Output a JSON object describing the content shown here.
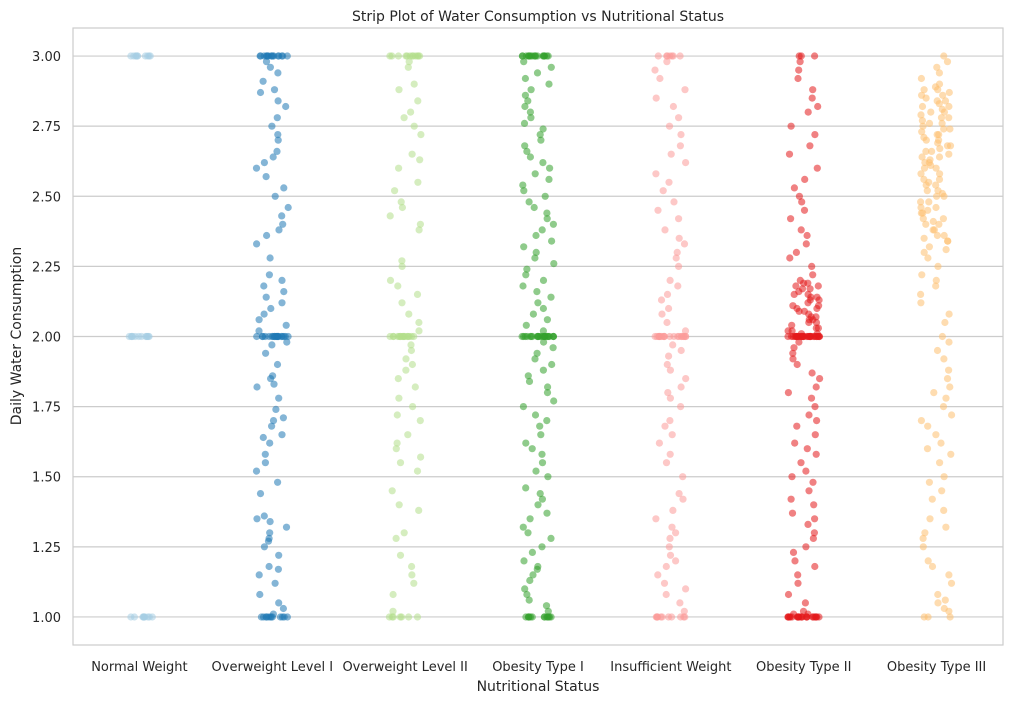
{
  "chart_data": {
    "type": "scatter",
    "subtype": "strip",
    "title": "Strip Plot of Water Consumption vs Nutritional Status",
    "xlabel": "Nutritional Status",
    "ylabel": "Daily Water Consumption",
    "ylim": [
      0.9,
      3.1
    ],
    "yticks": [
      1.0,
      1.25,
      1.5,
      1.75,
      2.0,
      2.25,
      2.5,
      2.75,
      3.0
    ],
    "ytick_labels": [
      "1.00",
      "1.25",
      "1.50",
      "1.75",
      "2.00",
      "2.25",
      "2.50",
      "2.75",
      "3.00"
    ],
    "grid": "horizontal",
    "legend": "none",
    "marker_alpha": 0.55,
    "categories": [
      "Normal Weight",
      "Overweight Level I",
      "Overweight Level II",
      "Obesity Type I",
      "Insufficient Weight",
      "Obesity Type II",
      "Obesity Type III"
    ],
    "colors": [
      "#a6cee3",
      "#1f78b4",
      "#b2df8a",
      "#33a02c",
      "#fb9a99",
      "#e31a1c",
      "#fdbf6f"
    ],
    "series": [
      {
        "category": "Normal Weight",
        "values": [
          1.0,
          1.0,
          1.0,
          1.0,
          1.0,
          1.0,
          1.0,
          1.0,
          1.0,
          1.0,
          2.0,
          2.0,
          2.0,
          2.0,
          2.0,
          2.0,
          2.0,
          2.0,
          2.0,
          2.0,
          2.0,
          2.0,
          3.0,
          3.0,
          3.0,
          3.0,
          3.0,
          3.0,
          3.0,
          3.0,
          3.0,
          3.0
        ]
      },
      {
        "category": "Overweight Level I",
        "values": [
          1.0,
          1.0,
          1.0,
          1.0,
          1.0,
          1.0,
          1.0,
          1.0,
          1.0,
          1.0,
          1.0,
          1.0,
          1.01,
          1.03,
          1.05,
          1.08,
          1.12,
          1.15,
          1.17,
          1.18,
          1.22,
          1.25,
          1.27,
          1.28,
          1.3,
          1.32,
          1.34,
          1.35,
          1.36,
          1.44,
          1.48,
          1.52,
          1.55,
          1.58,
          1.62,
          1.64,
          1.65,
          1.68,
          1.7,
          1.71,
          1.74,
          1.78,
          1.82,
          1.83,
          1.85,
          1.86,
          1.9,
          1.94,
          1.97,
          1.98,
          2.0,
          2.0,
          2.0,
          2.0,
          2.0,
          2.0,
          2.0,
          2.0,
          2.0,
          2.0,
          2.0,
          2.0,
          2.0,
          2.0,
          2.0,
          2.0,
          2.0,
          2.0,
          2.0,
          2.0,
          2.02,
          2.04,
          2.06,
          2.08,
          2.1,
          2.12,
          2.14,
          2.16,
          2.18,
          2.2,
          2.22,
          2.28,
          2.33,
          2.36,
          2.38,
          2.4,
          2.43,
          2.46,
          2.5,
          2.53,
          2.57,
          2.6,
          2.62,
          2.64,
          2.66,
          2.7,
          2.72,
          2.75,
          2.78,
          2.82,
          2.84,
          2.87,
          2.88,
          2.91,
          2.94,
          2.96,
          2.98,
          3.0,
          3.0,
          3.0,
          3.0,
          3.0,
          3.0,
          3.0,
          3.0,
          3.0,
          3.0,
          3.0,
          3.0,
          3.0,
          3.0,
          3.0,
          3.0
        ]
      },
      {
        "category": "Overweight Level II",
        "values": [
          1.0,
          1.0,
          1.0,
          1.0,
          1.0,
          1.0,
          1.0,
          1.02,
          1.08,
          1.12,
          1.15,
          1.18,
          1.22,
          1.28,
          1.3,
          1.38,
          1.4,
          1.45,
          1.52,
          1.55,
          1.57,
          1.6,
          1.62,
          1.65,
          1.7,
          1.72,
          1.75,
          1.78,
          1.82,
          1.85,
          1.88,
          1.9,
          1.92,
          1.95,
          1.97,
          2.0,
          2.0,
          2.0,
          2.0,
          2.0,
          2.0,
          2.0,
          2.0,
          2.0,
          2.0,
          2.0,
          2.0,
          2.0,
          2.0,
          2.0,
          2.0,
          2.02,
          2.05,
          2.08,
          2.12,
          2.15,
          2.18,
          2.2,
          2.25,
          2.27,
          2.38,
          2.4,
          2.43,
          2.46,
          2.48,
          2.52,
          2.55,
          2.6,
          2.63,
          2.65,
          2.72,
          2.75,
          2.78,
          2.8,
          2.84,
          2.88,
          2.9,
          2.96,
          2.98,
          3.0,
          3.0,
          3.0,
          3.0,
          3.0,
          3.0,
          3.0,
          3.0,
          3.0,
          3.0,
          3.0,
          3.0
        ]
      },
      {
        "category": "Obesity Type I",
        "values": [
          1.0,
          1.0,
          1.0,
          1.0,
          1.0,
          1.0,
          1.0,
          1.0,
          1.0,
          1.0,
          1.0,
          1.0,
          1.0,
          1.02,
          1.04,
          1.06,
          1.08,
          1.1,
          1.13,
          1.15,
          1.17,
          1.18,
          1.2,
          1.23,
          1.25,
          1.28,
          1.3,
          1.32,
          1.35,
          1.37,
          1.4,
          1.42,
          1.44,
          1.46,
          1.5,
          1.52,
          1.55,
          1.58,
          1.6,
          1.62,
          1.65,
          1.68,
          1.7,
          1.72,
          1.75,
          1.77,
          1.8,
          1.82,
          1.84,
          1.86,
          1.88,
          1.9,
          1.92,
          1.94,
          1.96,
          1.98,
          2.0,
          2.0,
          2.0,
          2.0,
          2.0,
          2.0,
          2.0,
          2.0,
          2.0,
          2.0,
          2.0,
          2.0,
          2.0,
          2.0,
          2.0,
          2.0,
          2.0,
          2.0,
          2.0,
          2.0,
          2.0,
          2.0,
          2.0,
          2.0,
          2.02,
          2.04,
          2.06,
          2.08,
          2.1,
          2.12,
          2.14,
          2.16,
          2.18,
          2.2,
          2.22,
          2.24,
          2.26,
          2.28,
          2.3,
          2.32,
          2.34,
          2.36,
          2.38,
          2.4,
          2.42,
          2.44,
          2.46,
          2.48,
          2.5,
          2.52,
          2.54,
          2.56,
          2.58,
          2.6,
          2.62,
          2.64,
          2.66,
          2.68,
          2.7,
          2.72,
          2.74,
          2.76,
          2.78,
          2.8,
          2.82,
          2.84,
          2.86,
          2.88,
          2.9,
          2.92,
          2.94,
          2.96,
          2.98,
          3.0,
          3.0,
          3.0,
          3.0,
          3.0,
          3.0,
          3.0,
          3.0,
          3.0,
          3.0,
          3.0,
          3.0,
          3.0,
          3.0,
          3.0,
          3.0,
          3.0,
          3.0
        ]
      },
      {
        "category": "Insufficient Weight",
        "values": [
          1.0,
          1.0,
          1.0,
          1.0,
          1.0,
          1.0,
          1.0,
          1.0,
          1.0,
          1.0,
          1.0,
          1.02,
          1.05,
          1.08,
          1.1,
          1.12,
          1.15,
          1.18,
          1.2,
          1.22,
          1.25,
          1.28,
          1.3,
          1.32,
          1.35,
          1.38,
          1.42,
          1.44,
          1.5,
          1.55,
          1.58,
          1.62,
          1.65,
          1.68,
          1.7,
          1.75,
          1.78,
          1.8,
          1.82,
          1.85,
          1.88,
          1.9,
          1.93,
          1.95,
          1.97,
          2.0,
          2.0,
          2.0,
          2.0,
          2.0,
          2.0,
          2.0,
          2.0,
          2.0,
          2.0,
          2.0,
          2.0,
          2.0,
          2.0,
          2.0,
          2.0,
          2.0,
          2.0,
          2.0,
          2.0,
          2.02,
          2.05,
          2.08,
          2.1,
          2.13,
          2.15,
          2.18,
          2.2,
          2.25,
          2.28,
          2.3,
          2.33,
          2.35,
          2.38,
          2.42,
          2.45,
          2.48,
          2.52,
          2.55,
          2.58,
          2.62,
          2.65,
          2.68,
          2.72,
          2.75,
          2.78,
          2.82,
          2.85,
          2.88,
          2.92,
          2.95,
          2.98,
          3.0,
          3.0,
          3.0,
          3.0,
          3.0,
          3.0,
          3.0
        ]
      },
      {
        "category": "Obesity Type II",
        "values": [
          1.0,
          1.0,
          1.0,
          1.0,
          1.0,
          1.0,
          1.0,
          1.0,
          1.0,
          1.0,
          1.0,
          1.0,
          1.0,
          1.0,
          1.0,
          1.0,
          1.0,
          1.0,
          1.0,
          1.0,
          1.0,
          1.0,
          1.0,
          1.0,
          1.01,
          1.01,
          1.02,
          1.05,
          1.08,
          1.12,
          1.15,
          1.18,
          1.2,
          1.23,
          1.25,
          1.28,
          1.3,
          1.33,
          1.35,
          1.37,
          1.4,
          1.42,
          1.45,
          1.48,
          1.5,
          1.52,
          1.55,
          1.58,
          1.6,
          1.62,
          1.65,
          1.68,
          1.7,
          1.72,
          1.75,
          1.78,
          1.8,
          1.82,
          1.85,
          1.87,
          1.9,
          1.92,
          1.94,
          1.96,
          1.98,
          2.0,
          2.0,
          2.0,
          2.0,
          2.0,
          2.0,
          2.0,
          2.0,
          2.0,
          2.0,
          2.0,
          2.0,
          2.0,
          2.0,
          2.0,
          2.0,
          2.0,
          2.0,
          2.0,
          2.0,
          2.0,
          2.0,
          2.0,
          2.0,
          2.0,
          2.0,
          2.0,
          2.0,
          2.0,
          2.0,
          2.0,
          2.0,
          2.01,
          2.02,
          2.03,
          2.04,
          2.05,
          2.06,
          2.07,
          2.08,
          2.09,
          2.1,
          2.11,
          2.12,
          2.13,
          2.14,
          2.15,
          2.16,
          2.17,
          2.18,
          2.19,
          2.2,
          2.01,
          2.03,
          2.05,
          2.07,
          2.09,
          2.11,
          2.13,
          2.15,
          2.17,
          2.19,
          2.02,
          2.06,
          2.1,
          2.14,
          2.18,
          2.22,
          2.25,
          2.28,
          2.3,
          2.33,
          2.36,
          2.38,
          2.42,
          2.45,
          2.48,
          2.5,
          2.53,
          2.56,
          2.6,
          2.65,
          2.68,
          2.72,
          2.75,
          2.8,
          2.82,
          2.85,
          2.88,
          2.92,
          2.95,
          2.98,
          3.0,
          3.0,
          3.0
        ]
      },
      {
        "category": "Obesity Type III",
        "values": [
          1.0,
          1.0,
          1.0,
          1.02,
          1.03,
          1.05,
          1.06,
          1.08,
          1.12,
          1.15,
          1.18,
          1.2,
          1.25,
          1.28,
          1.3,
          1.32,
          1.35,
          1.38,
          1.42,
          1.45,
          1.48,
          1.5,
          1.55,
          1.58,
          1.6,
          1.62,
          1.65,
          1.68,
          1.7,
          1.72,
          1.75,
          1.78,
          1.8,
          1.82,
          1.85,
          1.88,
          1.92,
          1.95,
          1.98,
          2.0,
          2.05,
          2.08,
          2.12,
          2.15,
          2.18,
          2.2,
          2.22,
          2.25,
          2.28,
          2.3,
          2.31,
          2.32,
          2.34,
          2.35,
          2.36,
          2.38,
          2.4,
          2.41,
          2.42,
          2.44,
          2.45,
          2.46,
          2.48,
          2.5,
          2.51,
          2.52,
          2.54,
          2.55,
          2.56,
          2.58,
          2.6,
          2.61,
          2.62,
          2.63,
          2.64,
          2.65,
          2.66,
          2.67,
          2.68,
          2.69,
          2.7,
          2.71,
          2.72,
          2.73,
          2.74,
          2.75,
          2.76,
          2.77,
          2.78,
          2.79,
          2.8,
          2.81,
          2.82,
          2.83,
          2.84,
          2.85,
          2.86,
          2.87,
          2.88,
          2.89,
          2.9,
          2.92,
          2.94,
          2.96,
          2.98,
          3.0,
          2.62,
          2.64,
          2.66,
          2.68,
          2.7,
          2.72,
          2.74,
          2.76,
          2.78,
          2.8,
          2.82,
          2.84,
          2.86,
          2.88,
          2.6,
          2.58,
          2.56,
          2.54,
          2.52,
          2.5,
          2.48,
          2.46,
          2.44,
          2.42,
          2.4,
          2.38,
          2.36,
          2.34
        ]
      }
    ]
  }
}
